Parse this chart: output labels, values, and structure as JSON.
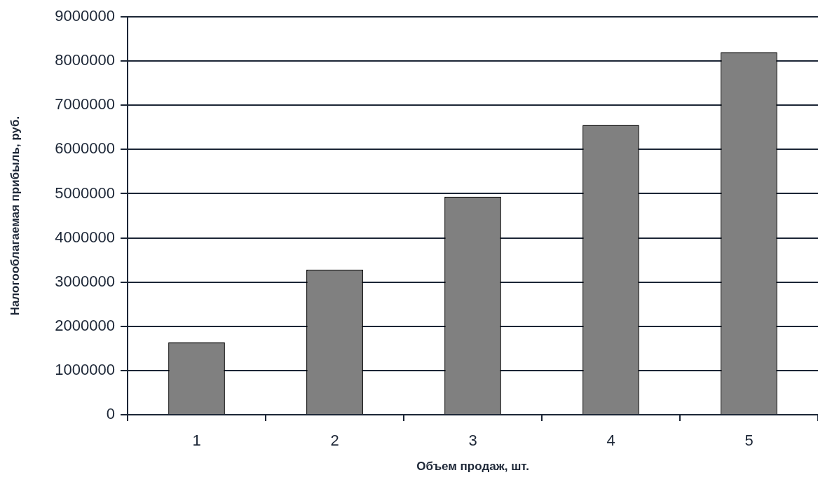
{
  "chart_data": {
    "type": "bar",
    "xlabel": "Объем продаж, шт.",
    "ylabel": "Налогооблагаемая прибыль, руб.",
    "categories": [
      "1",
      "2",
      "3",
      "4",
      "5"
    ],
    "values": [
      1640000,
      3280000,
      4930000,
      6550000,
      8200000
    ],
    "color": "#808080",
    "ylim": [
      0,
      9000000
    ],
    "yticks": [
      0,
      1000000,
      2000000,
      3000000,
      4000000,
      5000000,
      6000000,
      7000000,
      8000000,
      9000000
    ],
    "grid": "y"
  }
}
